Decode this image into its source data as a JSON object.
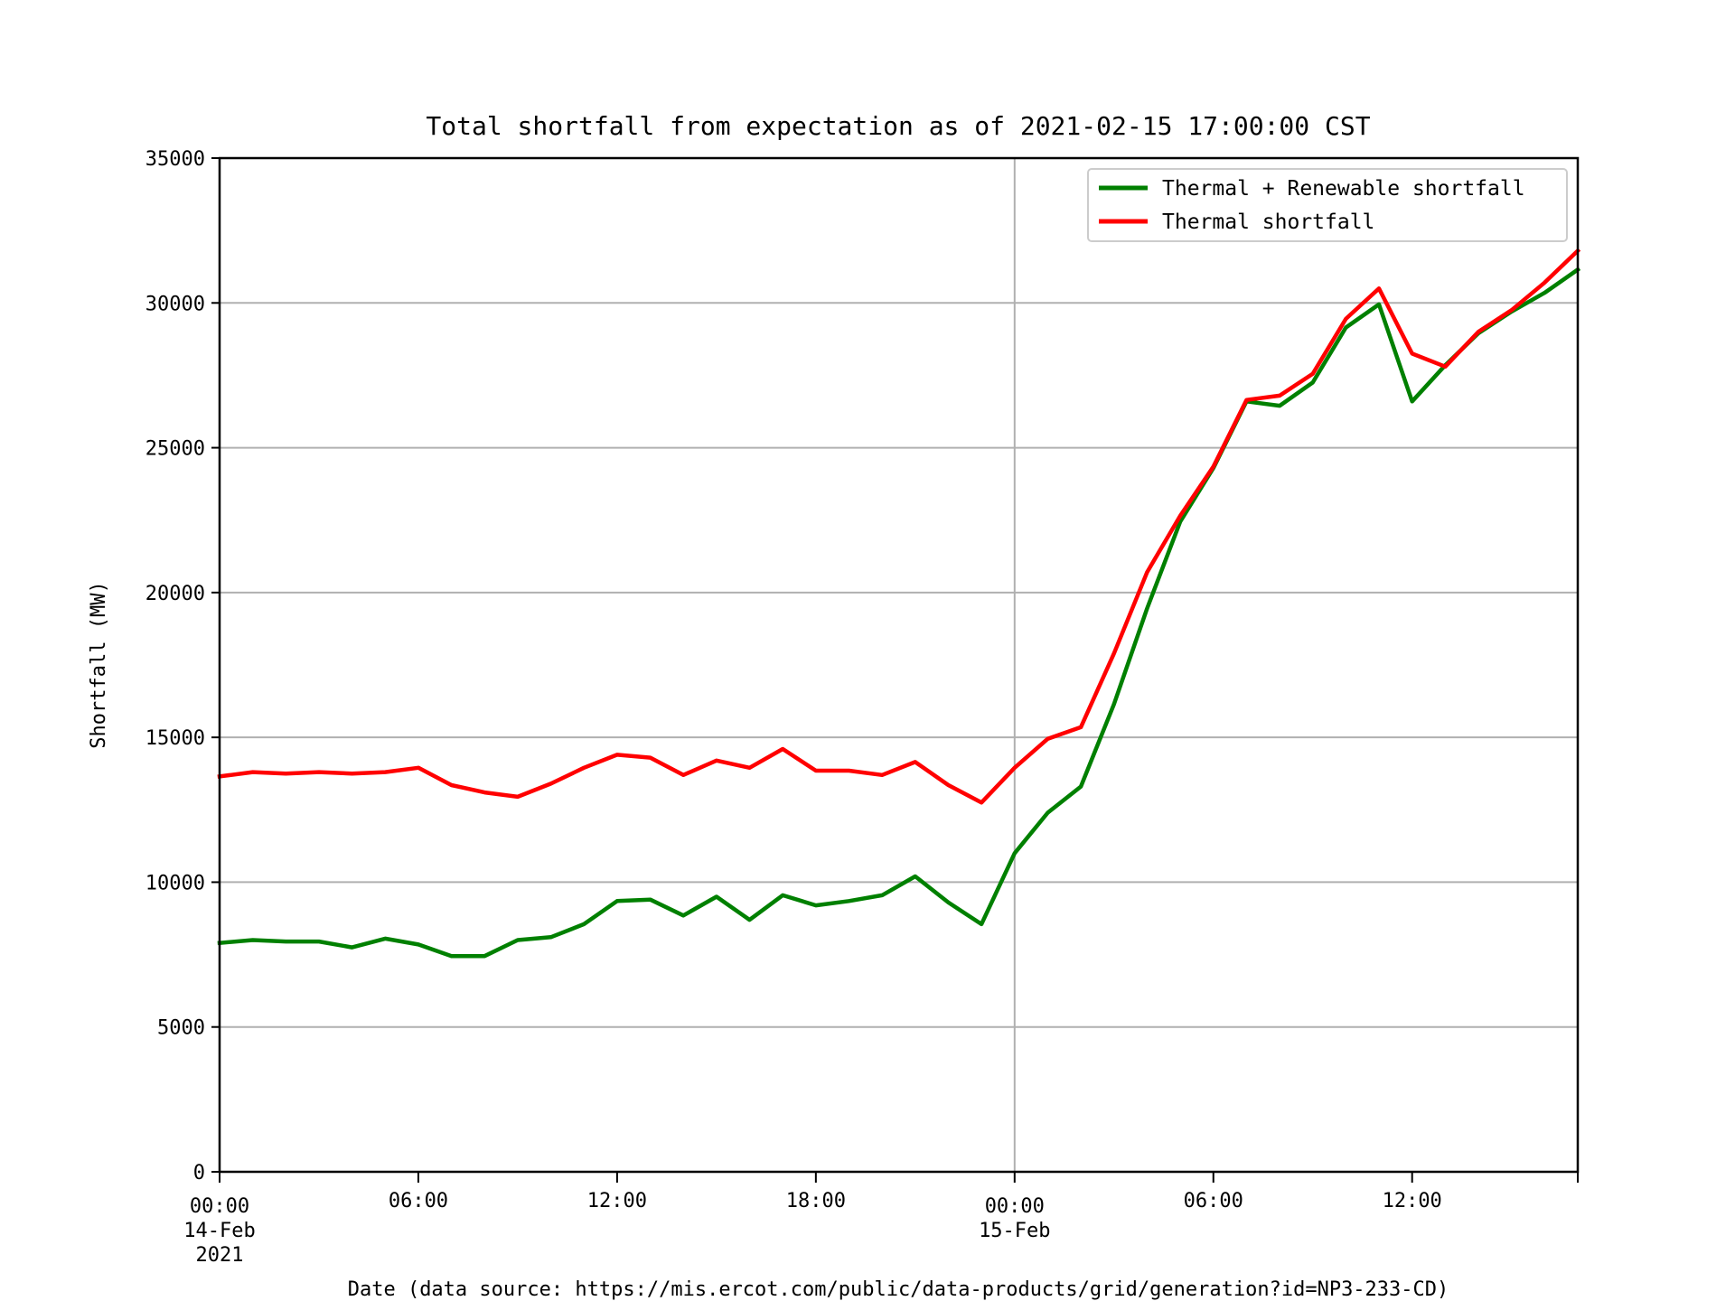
{
  "chart_data": {
    "type": "line",
    "title": "Total shortfall from expectation as of 2021-02-15 17:00:00 CST",
    "xlabel": "Date (data source: https://mis.ercot.com/public/data-products/grid/generation?id=NP3-233-CD)",
    "ylabel": "Shortfall (MW)",
    "ylim": [
      0,
      35000
    ],
    "xlim": [
      "2021-02-14 00:00",
      "2021-02-15 17:00"
    ],
    "yticks": [
      "0",
      "5000",
      "10000",
      "15000",
      "20000",
      "25000",
      "30000",
      "35000"
    ],
    "xticks": [
      {
        "at": "2021-02-14 00:00",
        "lines": [
          "00:00",
          "14-Feb",
          "2021"
        ]
      },
      {
        "at": "2021-02-14 06:00",
        "lines": [
          "06:00"
        ]
      },
      {
        "at": "2021-02-14 12:00",
        "lines": [
          "12:00"
        ]
      },
      {
        "at": "2021-02-14 18:00",
        "lines": [
          "18:00"
        ]
      },
      {
        "at": "2021-02-15 00:00",
        "lines": [
          "00:00",
          "15-Feb"
        ]
      },
      {
        "at": "2021-02-15 06:00",
        "lines": [
          "06:00"
        ]
      },
      {
        "at": "2021-02-15 12:00",
        "lines": [
          "12:00"
        ]
      }
    ],
    "grid": {
      "horizontal": true,
      "vertical_at": [
        "2021-02-15 00:00"
      ]
    },
    "legend_position": "top-right",
    "x": [
      "2021-02-14 00:00",
      "2021-02-14 01:00",
      "2021-02-14 02:00",
      "2021-02-14 03:00",
      "2021-02-14 04:00",
      "2021-02-14 05:00",
      "2021-02-14 06:00",
      "2021-02-14 07:00",
      "2021-02-14 08:00",
      "2021-02-14 09:00",
      "2021-02-14 10:00",
      "2021-02-14 11:00",
      "2021-02-14 12:00",
      "2021-02-14 13:00",
      "2021-02-14 14:00",
      "2021-02-14 15:00",
      "2021-02-14 16:00",
      "2021-02-14 17:00",
      "2021-02-14 18:00",
      "2021-02-14 19:00",
      "2021-02-14 20:00",
      "2021-02-14 21:00",
      "2021-02-14 22:00",
      "2021-02-14 23:00",
      "2021-02-15 00:00",
      "2021-02-15 01:00",
      "2021-02-15 02:00",
      "2021-02-15 03:00",
      "2021-02-15 04:00",
      "2021-02-15 05:00",
      "2021-02-15 06:00",
      "2021-02-15 07:00",
      "2021-02-15 08:00",
      "2021-02-15 09:00",
      "2021-02-15 10:00",
      "2021-02-15 11:00",
      "2021-02-15 12:00",
      "2021-02-15 13:00",
      "2021-02-15 14:00",
      "2021-02-15 15:00",
      "2021-02-15 16:00",
      "2021-02-15 17:00"
    ],
    "series": [
      {
        "name": "Thermal + Renewable shortfall",
        "color": "#008000",
        "values": [
          7900,
          8000,
          7950,
          7950,
          7750,
          8050,
          7850,
          7450,
          7450,
          8000,
          8100,
          8550,
          9350,
          9400,
          8850,
          9500,
          8700,
          9550,
          9200,
          9350,
          9550,
          10200,
          9300,
          8550,
          11000,
          12400,
          13300,
          16150,
          19450,
          22450,
          24300,
          26600,
          26450,
          27250,
          29150,
          29950,
          26600,
          27850,
          28950,
          29700,
          30350,
          31150
        ]
      },
      {
        "name": "Thermal shortfall",
        "color": "#ff0000",
        "values": [
          13650,
          13800,
          13750,
          13800,
          13750,
          13800,
          13950,
          13350,
          13100,
          12950,
          13400,
          13950,
          14400,
          14300,
          13700,
          14200,
          13950,
          14600,
          13850,
          13850,
          13700,
          14150,
          13350,
          12750,
          13950,
          14950,
          15350,
          17900,
          20700,
          22650,
          24350,
          26650,
          26800,
          27550,
          29450,
          30500,
          28250,
          27800,
          29000,
          29750,
          30700,
          31800
        ]
      }
    ]
  }
}
